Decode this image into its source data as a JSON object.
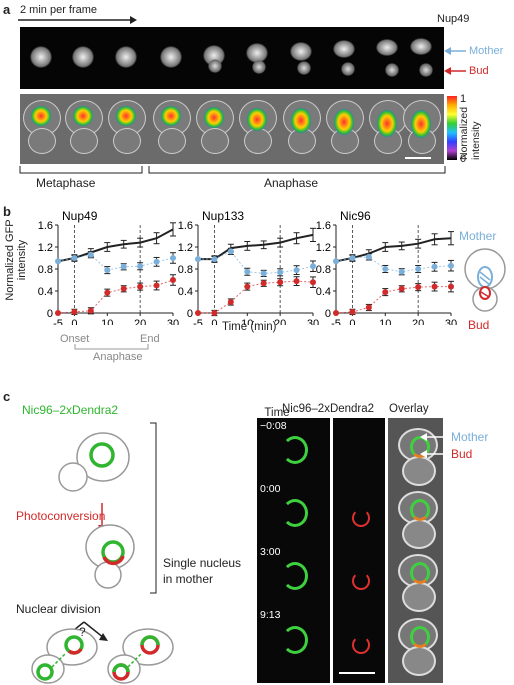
{
  "panel_a": {
    "letter": "a",
    "frame_rate": "2 min per frame",
    "protein": "Nup49",
    "mother": "Mother",
    "bud": "Bud",
    "colorbar_top": "1",
    "colorbar_bottom": "0",
    "colorbar_label": "Normalized intensity",
    "phase_metaphase": "Metaphase",
    "phase_anaphase": "Anaphase"
  },
  "panel_b": {
    "letter": "b",
    "ylabel": "Normalized GFP intensity",
    "xlabel": "Time (min)",
    "onset": "Onset",
    "end": "End",
    "anaphase": "Anaphase",
    "mother": "Mother",
    "bud": "Bud"
  },
  "chart_data": [
    {
      "type": "line",
      "title": "Nup49",
      "xlim": [
        -5,
        30
      ],
      "ylim": [
        0,
        1.6
      ],
      "xticks": [
        "-5",
        "0",
        "10",
        "20",
        "30"
      ],
      "yticks": [
        "0",
        "0.4",
        "0.8",
        "1.2",
        "1.6"
      ],
      "x": [
        -5,
        0,
        5,
        10,
        15,
        20,
        25,
        30
      ],
      "series": [
        {
          "name": "Total",
          "values": [
            0.94,
            1.0,
            1.1,
            1.2,
            1.25,
            1.28,
            1.36,
            1.52
          ],
          "color": "#222222"
        },
        {
          "name": "Mother",
          "values": [
            0.94,
            1.0,
            1.06,
            0.78,
            0.84,
            0.85,
            0.93,
            1.0
          ],
          "color": "#7aafd9"
        },
        {
          "name": "Bud",
          "values": [
            0.0,
            0.02,
            0.04,
            0.37,
            0.44,
            0.48,
            0.5,
            0.6
          ],
          "color": "#d12a2a"
        }
      ]
    },
    {
      "type": "line",
      "title": "Nup133",
      "xlim": [
        -5,
        30
      ],
      "ylim": [
        0,
        1.6
      ],
      "xticks": [
        "-5",
        "0",
        "10",
        "20",
        "30"
      ],
      "yticks": [
        "0",
        "0.4",
        "0.8",
        "1.2",
        "1.6"
      ],
      "x": [
        -5,
        0,
        5,
        10,
        15,
        20,
        25,
        30
      ],
      "series": [
        {
          "name": "Total",
          "values": [
            0.98,
            0.98,
            1.18,
            1.22,
            1.24,
            1.28,
            1.36,
            1.42
          ],
          "color": "#222222"
        },
        {
          "name": "Mother",
          "values": [
            0.98,
            0.98,
            1.12,
            0.75,
            0.72,
            0.74,
            0.78,
            0.85
          ],
          "color": "#7aafd9"
        },
        {
          "name": "Bud",
          "values": [
            0.0,
            0.0,
            0.2,
            0.48,
            0.54,
            0.56,
            0.58,
            0.56
          ],
          "color": "#d12a2a"
        }
      ]
    },
    {
      "type": "line",
      "title": "Nic96",
      "xlim": [
        -5,
        30
      ],
      "ylim": [
        0,
        1.6
      ],
      "xticks": [
        "-5",
        "0",
        "10",
        "20",
        "30"
      ],
      "yticks": [
        "0",
        "0.4",
        "0.8",
        "1.2",
        "1.6"
      ],
      "x": [
        -5,
        0,
        5,
        10,
        15,
        20,
        25,
        30
      ],
      "series": [
        {
          "name": "Total",
          "values": [
            0.94,
            1.0,
            1.08,
            1.2,
            1.22,
            1.26,
            1.34,
            1.36
          ],
          "color": "#222222"
        },
        {
          "name": "Mother",
          "values": [
            0.94,
            1.0,
            1.02,
            0.8,
            0.75,
            0.8,
            0.84,
            0.86
          ],
          "color": "#7aafd9"
        },
        {
          "name": "Bud",
          "values": [
            0.0,
            0.02,
            0.1,
            0.38,
            0.44,
            0.47,
            0.48,
            0.48
          ],
          "color": "#d12a2a"
        }
      ]
    }
  ],
  "panel_c": {
    "letter": "c",
    "construct": "Nic96–2xDendra2",
    "photoconversion": "Photoconversion",
    "single_nucleus": "Single nucleus in mother",
    "nuclear_division": "Nuclear division",
    "question": "?",
    "time_label": "Time (min:s)",
    "col_green": "Nic96–2xDendra2",
    "col_overlay": "Overlay",
    "mother": "Mother",
    "bud": "Bud",
    "times": [
      "−0:08",
      "0:00",
      "3:00",
      "9:13"
    ]
  },
  "colors": {
    "mother_blue": "#7aafd9",
    "bud_red": "#d12a2a",
    "green": "#2fb52f"
  }
}
